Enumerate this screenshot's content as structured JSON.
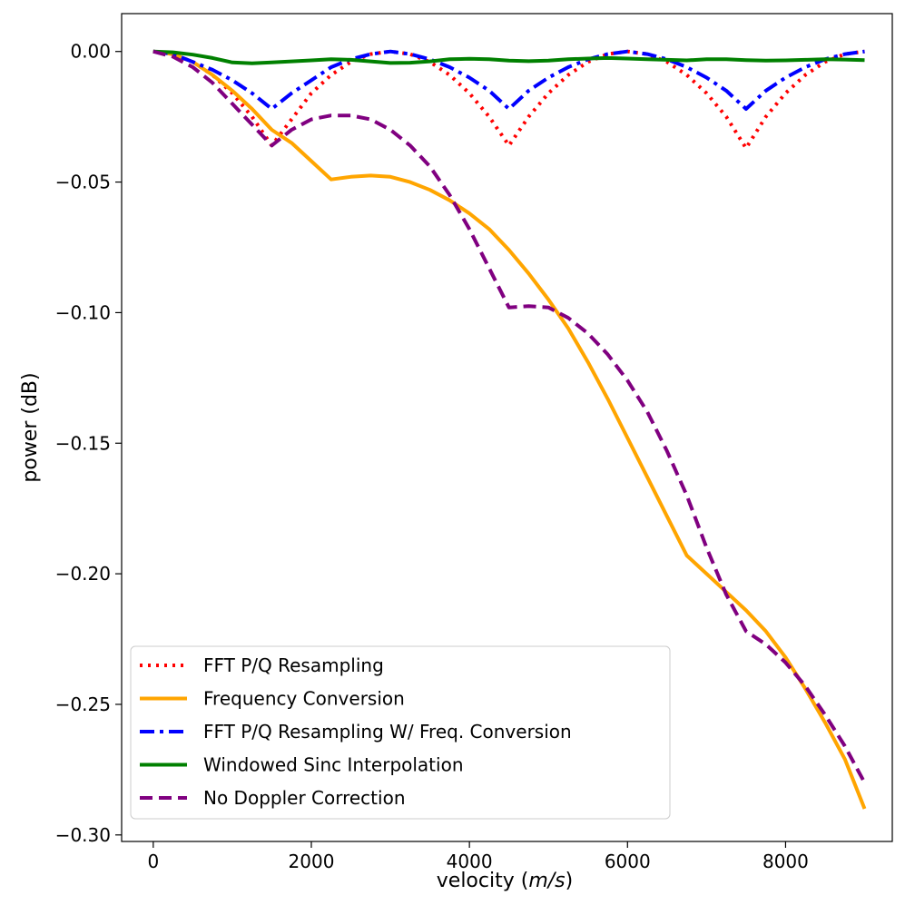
{
  "chart_data": {
    "type": "line",
    "title": "",
    "xlabel_prefix": "velocity (",
    "xlabel_unit": "m/s",
    "xlabel_suffix": ")",
    "ylabel": "power (dB)",
    "xlim": [
      -400,
      9350
    ],
    "ylim": [
      -0.3025,
      0.0145
    ],
    "xticks": [
      0,
      2000,
      4000,
      6000,
      8000
    ],
    "xtick_labels": [
      "0",
      "2000",
      "4000",
      "6000",
      "8000"
    ],
    "yticks": [
      0.0,
      -0.05,
      -0.1,
      -0.15,
      -0.2,
      -0.25,
      -0.3
    ],
    "ytick_labels": [
      "0.00",
      "−0.05",
      "−0.10",
      "−0.15",
      "−0.20",
      "−0.25",
      "−0.30"
    ],
    "grid": false,
    "legend_position": "lower-left",
    "series": [
      {
        "name": "FFT P/Q Resampling",
        "color": "#ff0000",
        "style": "dotted",
        "x": [
          0,
          250,
          500,
          750,
          1000,
          1250,
          1500,
          1750,
          2000,
          2250,
          2500,
          2750,
          3000,
          3250,
          3500,
          3750,
          4000,
          4250,
          4500,
          4750,
          5000,
          5250,
          5500,
          5750,
          6000,
          6250,
          6500,
          6750,
          7000,
          7250,
          7500,
          7750,
          8000,
          8250,
          8500,
          8750,
          9000
        ],
        "y": [
          0.0,
          -0.001,
          -0.004,
          -0.009,
          -0.016,
          -0.025,
          -0.036,
          -0.026,
          -0.016,
          -0.009,
          -0.004,
          -0.001,
          0.0,
          -0.001,
          -0.004,
          -0.009,
          -0.016,
          -0.025,
          -0.036,
          -0.025,
          -0.016,
          -0.009,
          -0.004,
          -0.001,
          0.0,
          -0.001,
          -0.004,
          -0.009,
          -0.016,
          -0.025,
          -0.037,
          -0.025,
          -0.016,
          -0.009,
          -0.004,
          -0.001,
          0.0
        ]
      },
      {
        "name": "Frequency Conversion",
        "color": "#ffa500",
        "style": "solid",
        "x": [
          0,
          250,
          500,
          750,
          1000,
          1250,
          1500,
          1750,
          2000,
          2250,
          2500,
          2750,
          3000,
          3250,
          3500,
          3750,
          4000,
          4250,
          4500,
          4750,
          5000,
          5250,
          5500,
          5750,
          6000,
          6250,
          6500,
          6750,
          7000,
          7250,
          7500,
          7750,
          8000,
          8250,
          8500,
          8750,
          9000
        ],
        "y": [
          0.0,
          -0.001,
          -0.004,
          -0.009,
          -0.015,
          -0.022,
          -0.03,
          -0.035,
          -0.042,
          -0.049,
          -0.048,
          -0.0475,
          -0.048,
          -0.05,
          -0.053,
          -0.057,
          -0.062,
          -0.068,
          -0.076,
          -0.085,
          -0.095,
          -0.106,
          -0.119,
          -0.133,
          -0.148,
          -0.163,
          -0.178,
          -0.193,
          -0.2,
          -0.207,
          -0.214,
          -0.222,
          -0.232,
          -0.244,
          -0.257,
          -0.271,
          -0.29
        ]
      },
      {
        "name": "FFT P/Q Resampling W/ Freq. Conversion",
        "color": "#0000ff",
        "style": "dashdot",
        "x": [
          0,
          250,
          500,
          750,
          1000,
          1250,
          1500,
          1750,
          2000,
          2250,
          2500,
          2750,
          3000,
          3250,
          3500,
          3750,
          4000,
          4250,
          4500,
          4750,
          5000,
          5250,
          5500,
          5750,
          6000,
          6250,
          6500,
          6750,
          7000,
          7250,
          7500,
          7750,
          8000,
          8250,
          8500,
          8750,
          9000
        ],
        "y": [
          0.0,
          -0.001,
          -0.004,
          -0.007,
          -0.011,
          -0.016,
          -0.022,
          -0.016,
          -0.011,
          -0.006,
          -0.003,
          -0.001,
          0.0,
          -0.001,
          -0.003,
          -0.006,
          -0.01,
          -0.015,
          -0.022,
          -0.015,
          -0.01,
          -0.006,
          -0.003,
          -0.001,
          0.0,
          -0.001,
          -0.003,
          -0.006,
          -0.01,
          -0.015,
          -0.022,
          -0.015,
          -0.01,
          -0.006,
          -0.003,
          -0.001,
          0.0
        ]
      },
      {
        "name": "Windowed Sinc Interpolation",
        "color": "#008000",
        "style": "solid",
        "x": [
          0,
          250,
          500,
          750,
          1000,
          1250,
          1500,
          1750,
          2000,
          2250,
          2500,
          2750,
          3000,
          3250,
          3500,
          3750,
          4000,
          4250,
          4500,
          4750,
          5000,
          5250,
          5500,
          5750,
          6000,
          6250,
          6500,
          6750,
          7000,
          7250,
          7500,
          7750,
          8000,
          8250,
          8500,
          8750,
          9000
        ],
        "y": [
          0.0,
          -0.0003,
          -0.0012,
          -0.0025,
          -0.0042,
          -0.0045,
          -0.0042,
          -0.0038,
          -0.0034,
          -0.003,
          -0.0032,
          -0.0038,
          -0.0044,
          -0.0043,
          -0.0038,
          -0.003,
          -0.0028,
          -0.003,
          -0.0035,
          -0.0037,
          -0.0035,
          -0.003,
          -0.0027,
          -0.0025,
          -0.0027,
          -0.003,
          -0.0032,
          -0.0034,
          -0.003,
          -0.003,
          -0.0033,
          -0.0035,
          -0.0034,
          -0.0032,
          -0.003,
          -0.0031,
          -0.0033
        ]
      },
      {
        "name": "No Doppler Correction",
        "color": "#800080",
        "style": "dashed",
        "x": [
          0,
          250,
          500,
          750,
          1000,
          1250,
          1500,
          1750,
          2000,
          2250,
          2500,
          2750,
          3000,
          3250,
          3500,
          3750,
          4000,
          4250,
          4500,
          4750,
          5000,
          5250,
          5500,
          5750,
          6000,
          6250,
          6500,
          6750,
          7000,
          7250,
          7500,
          7750,
          8000,
          8250,
          8500,
          8750,
          9000
        ],
        "y": [
          0.0,
          -0.002,
          -0.006,
          -0.012,
          -0.02,
          -0.028,
          -0.036,
          -0.03,
          -0.026,
          -0.0245,
          -0.0245,
          -0.026,
          -0.03,
          -0.036,
          -0.044,
          -0.055,
          -0.068,
          -0.083,
          -0.098,
          -0.0975,
          -0.098,
          -0.102,
          -0.108,
          -0.116,
          -0.126,
          -0.138,
          -0.153,
          -0.17,
          -0.19,
          -0.208,
          -0.222,
          -0.227,
          -0.234,
          -0.243,
          -0.254,
          -0.266,
          -0.28
        ]
      }
    ]
  }
}
